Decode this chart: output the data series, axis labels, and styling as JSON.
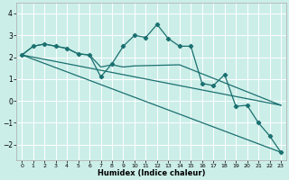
{
  "xlabel": "Humidex (Indice chaleur)",
  "bg_color": "#cceee8",
  "grid_color": "#ffffff",
  "line_color": "#1a7070",
  "x_ticks": [
    0,
    1,
    2,
    3,
    4,
    5,
    6,
    7,
    8,
    9,
    10,
    11,
    12,
    13,
    14,
    15,
    16,
    17,
    18,
    19,
    20,
    21,
    22,
    23
  ],
  "y_ticks": [
    -2,
    -1,
    0,
    1,
    2,
    3,
    4
  ],
  "ylim": [
    -2.7,
    4.5
  ],
  "xlim": [
    -0.5,
    23.5
  ],
  "line1_x": [
    0,
    1,
    2,
    3,
    4,
    5,
    6,
    7,
    8,
    9,
    10,
    11,
    12,
    13,
    14,
    15,
    16,
    17,
    18,
    19,
    20,
    21,
    22,
    23
  ],
  "line1_y": [
    2.1,
    2.5,
    2.6,
    2.5,
    2.4,
    2.15,
    2.1,
    1.1,
    1.7,
    2.5,
    3.0,
    2.9,
    3.5,
    2.85,
    2.5,
    2.5,
    0.8,
    0.7,
    1.2,
    -0.25,
    -0.2,
    -1.0,
    -1.6,
    -2.35
  ],
  "line2_x": [
    0,
    1,
    2,
    3,
    4,
    5,
    6,
    7,
    8,
    9,
    10,
    14,
    23
  ],
  "line2_y": [
    2.1,
    2.5,
    2.6,
    2.5,
    2.4,
    2.15,
    2.1,
    1.55,
    1.65,
    1.55,
    1.6,
    1.65,
    -0.2
  ],
  "line3_x": [
    0,
    23
  ],
  "line3_y": [
    2.1,
    -2.35
  ],
  "line4_x": [
    0,
    23
  ],
  "line4_y": [
    2.1,
    -0.2
  ]
}
